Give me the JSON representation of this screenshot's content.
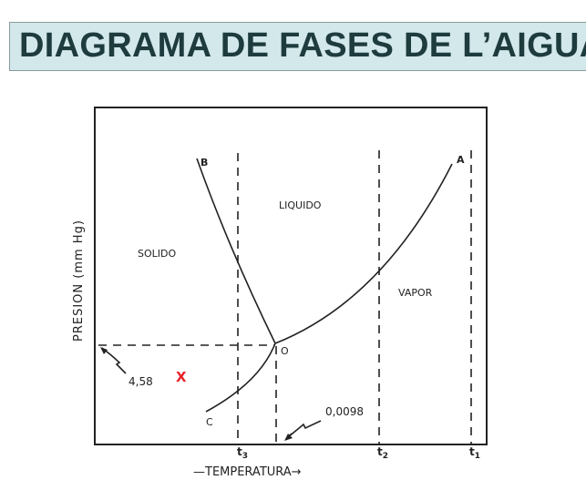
{
  "title": "DIAGRAMA DE FASES DE L’AIGUA",
  "diagram": {
    "y_axis_label": "PRESION (mm Hg)",
    "x_axis_label": "—TEMPERATURA→",
    "regions": {
      "solid": "SOLIDO",
      "liquid": "LIQUIDO",
      "vapor": "VAPOR"
    },
    "curve_labels": {
      "a": "A",
      "b": "B",
      "c": "C",
      "triple_point": "O"
    },
    "triple_point_pressure": "4,58",
    "triple_point_temperature": "0,0098",
    "temperature_ticks": {
      "t3": "t",
      "t3_sub": "3",
      "t2": "t",
      "t2_sub": "2",
      "t1": "t",
      "t1_sub": "1"
    },
    "marker": "X",
    "marker_color": "#e8232a"
  }
}
